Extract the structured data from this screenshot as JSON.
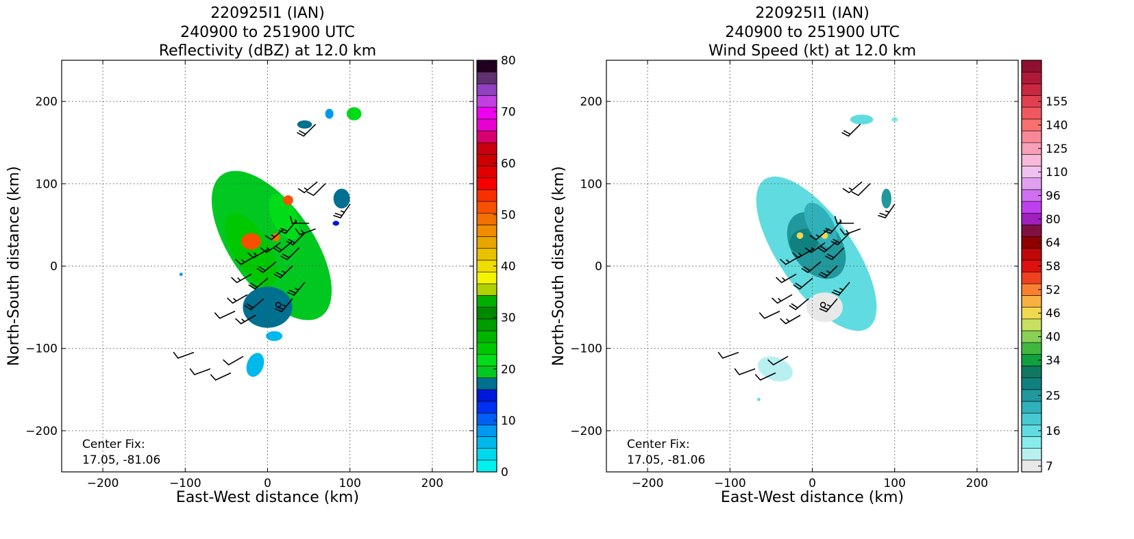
{
  "chart_data": [
    {
      "type": "heatmap",
      "title": [
        "220925I1 (IAN)",
        "240900 to 251900 UTC",
        "Reflectivity (dBZ) at 12.0 km"
      ],
      "xlabel": "East-West distance (km)",
      "ylabel": "North-South distance (km)",
      "xlim": [
        -250,
        250
      ],
      "ylim": [
        -250,
        250
      ],
      "xticks": [
        -200,
        -100,
        0,
        100,
        200
      ],
      "yticks": [
        -200,
        -100,
        0,
        100,
        200
      ],
      "grid": true,
      "annotation": [
        "Center Fix:",
        "17.05, -81.06"
      ],
      "colorbar": {
        "min": 0,
        "max": 80,
        "ticks": [
          0,
          10,
          20,
          30,
          40,
          50,
          60,
          70,
          80
        ],
        "colors": [
          "#00f0f0",
          "#00d8ec",
          "#00b8ec",
          "#0098f0",
          "#0060f4",
          "#0030f0",
          "#0018d8",
          "#007090",
          "#00c820",
          "#00dc18",
          "#00c800",
          "#00b400",
          "#009c00",
          "#008800",
          "#00b000",
          "#b0d000",
          "#f4f400",
          "#f0dc00",
          "#e8c000",
          "#e8a400",
          "#f08c00",
          "#f07000",
          "#f85000",
          "#f83000",
          "#f80000",
          "#e00000",
          "#cc0000",
          "#c80010",
          "#d80070",
          "#e800d0",
          "#f000f0",
          "#c040e0",
          "#9040c0",
          "#603070",
          "#200020"
        ]
      },
      "echo_regions": [
        {
          "cx": 5,
          "cy": 25,
          "rx": 50,
          "ry": 105,
          "angle": -35,
          "level": 8
        },
        {
          "cx": -20,
          "cy": 20,
          "rx": 22,
          "ry": 50,
          "angle": -30,
          "level": 10
        },
        {
          "cx": 20,
          "cy": 60,
          "rx": 15,
          "ry": 30,
          "angle": -25,
          "level": 9
        },
        {
          "cx": 0,
          "cy": -50,
          "rx": 30,
          "ry": 25,
          "angle": 0,
          "level": 7
        },
        {
          "cx": -20,
          "cy": 30,
          "rx": 12,
          "ry": 10,
          "angle": 0,
          "level": 22
        },
        {
          "cx": 25,
          "cy": 80,
          "rx": 6,
          "ry": 6,
          "angle": 0,
          "level": 22
        },
        {
          "cx": 10,
          "cy": 35,
          "rx": 5,
          "ry": 5,
          "angle": 0,
          "level": 21
        },
        {
          "cx": 105,
          "cy": 185,
          "rx": 9,
          "ry": 8,
          "angle": 0,
          "level": 9
        },
        {
          "cx": 75,
          "cy": 185,
          "rx": 5,
          "ry": 6,
          "angle": 0,
          "level": 3
        },
        {
          "cx": 45,
          "cy": 172,
          "rx": 9,
          "ry": 5,
          "angle": 0,
          "level": 7
        },
        {
          "cx": 90,
          "cy": 82,
          "rx": 10,
          "ry": 12,
          "angle": 0,
          "level": 7
        },
        {
          "cx": 83,
          "cy": 52,
          "rx": 4,
          "ry": 3,
          "angle": 0,
          "level": 6
        },
        {
          "cx": 8,
          "cy": -85,
          "rx": 10,
          "ry": 6,
          "angle": 0,
          "level": 2
        },
        {
          "cx": -15,
          "cy": -120,
          "rx": 10,
          "ry": 15,
          "angle": 20,
          "level": 2
        },
        {
          "cx": -105,
          "cy": -10,
          "rx": 2,
          "ry": 2,
          "angle": 0,
          "level": 3
        }
      ]
    },
    {
      "type": "heatmap",
      "title": [
        "220925I1 (IAN)",
        "240900 to 251900 UTC",
        "Wind Speed (kt) at 12.0 km"
      ],
      "xlabel": "East-West distance (km)",
      "ylabel": "North-South distance (km)",
      "xlim": [
        -250,
        250
      ],
      "ylim": [
        -250,
        250
      ],
      "xticks": [
        -200,
        -100,
        0,
        100,
        200
      ],
      "yticks": [
        -200,
        -100,
        0,
        100,
        200
      ],
      "grid": true,
      "annotation": [
        "Center Fix:",
        "17.05, -81.06"
      ],
      "colorbar": {
        "ticks": [
          {
            "label": "7",
            "index": 0
          },
          {
            "label": "16",
            "index": 3
          },
          {
            "label": "25",
            "index": 6
          },
          {
            "label": "34",
            "index": 9
          },
          {
            "label": "40",
            "index": 11
          },
          {
            "label": "46",
            "index": 13
          },
          {
            "label": "52",
            "index": 15
          },
          {
            "label": "58",
            "index": 17
          },
          {
            "label": "64",
            "index": 19
          },
          {
            "label": "80",
            "index": 21
          },
          {
            "label": "96",
            "index": 23
          },
          {
            "label": "110",
            "index": 25
          },
          {
            "label": "125",
            "index": 27
          },
          {
            "label": "140",
            "index": 29
          },
          {
            "label": "155",
            "index": 31
          }
        ],
        "colors": [
          "#e8e8e8",
          "#b8f0f0",
          "#88ecec",
          "#60dce0",
          "#48c8d0",
          "#30b0b8",
          "#20989c",
          "#108080",
          "#107860",
          "#10a040",
          "#40b840",
          "#88d058",
          "#c8e060",
          "#f0d850",
          "#f8b040",
          "#f88030",
          "#f04020",
          "#e01010",
          "#c00808",
          "#900000",
          "#801040",
          "#a020c0",
          "#c040f0",
          "#d070f0",
          "#e0a0f0",
          "#f0c0f0",
          "#f8b8d8",
          "#f8a0b8",
          "#f88898",
          "#f87070",
          "#f05860",
          "#e04050",
          "#c82840",
          "#b01838",
          "#901030"
        ]
      },
      "echo_regions": [
        {
          "cx": 5,
          "cy": 15,
          "rx": 45,
          "ry": 110,
          "angle": -35,
          "level": 3
        },
        {
          "cx": 5,
          "cy": 25,
          "rx": 30,
          "ry": 45,
          "angle": -35,
          "level": 6
        },
        {
          "cx": -10,
          "cy": 30,
          "rx": 18,
          "ry": 15,
          "angle": -20,
          "level": 7
        },
        {
          "cx": 10,
          "cy": 50,
          "rx": 15,
          "ry": 30,
          "angle": -30,
          "level": 5
        },
        {
          "cx": 15,
          "cy": -50,
          "rx": 22,
          "ry": 18,
          "angle": 0,
          "level": 0
        },
        {
          "cx": -15,
          "cy": 37,
          "rx": 4,
          "ry": 4,
          "angle": 0,
          "level": 13
        },
        {
          "cx": 15,
          "cy": 37,
          "rx": 4,
          "ry": 4,
          "angle": 0,
          "level": 13
        },
        {
          "cx": 90,
          "cy": 82,
          "rx": 6,
          "ry": 12,
          "angle": 0,
          "level": 6
        },
        {
          "cx": 60,
          "cy": 178,
          "rx": 14,
          "ry": 6,
          "angle": 0,
          "level": 3
        },
        {
          "cx": 100,
          "cy": 178,
          "rx": 4,
          "ry": 3,
          "angle": 0,
          "level": 2
        },
        {
          "cx": -45,
          "cy": -125,
          "rx": 22,
          "ry": 14,
          "angle": 20,
          "level": 1
        },
        {
          "cx": -65,
          "cy": -162,
          "rx": 2,
          "ry": 2,
          "angle": 0,
          "level": 3
        }
      ]
    }
  ],
  "wind_barbs": [
    {
      "x": 58,
      "y": 172,
      "dir": 225,
      "kt": 20
    },
    {
      "x": 60,
      "y": 102,
      "dir": 230,
      "kt": 15
    },
    {
      "x": 70,
      "y": 100,
      "dir": 225,
      "kt": 10
    },
    {
      "x": 100,
      "y": 75,
      "dir": 215,
      "kt": 25
    },
    {
      "x": 50,
      "y": 52,
      "dir": 270,
      "kt": 15
    },
    {
      "x": 58,
      "y": 45,
      "dir": 250,
      "kt": 15
    },
    {
      "x": 35,
      "y": 55,
      "dir": 220,
      "kt": 20
    },
    {
      "x": 20,
      "y": 45,
      "dir": 230,
      "kt": 15
    },
    {
      "x": 45,
      "y": 40,
      "dir": 225,
      "kt": 20
    },
    {
      "x": 30,
      "y": 30,
      "dir": 230,
      "kt": 20
    },
    {
      "x": 15,
      "y": 28,
      "dir": 235,
      "kt": 15
    },
    {
      "x": 0,
      "y": 20,
      "dir": 240,
      "kt": 15
    },
    {
      "x": 38,
      "y": 22,
      "dir": 225,
      "kt": 20
    },
    {
      "x": -15,
      "y": 12,
      "dir": 240,
      "kt": 15
    },
    {
      "x": 10,
      "y": 5,
      "dir": 230,
      "kt": 20
    },
    {
      "x": 30,
      "y": 0,
      "dir": 225,
      "kt": 25
    },
    {
      "x": -20,
      "y": -10,
      "dir": 240,
      "kt": 15
    },
    {
      "x": 0,
      "y": -15,
      "dir": 230,
      "kt": 20
    },
    {
      "x": 45,
      "y": -20,
      "dir": 220,
      "kt": 25
    },
    {
      "x": -25,
      "y": -35,
      "dir": 240,
      "kt": 15
    },
    {
      "x": -5,
      "y": -40,
      "dir": 230,
      "kt": 20
    },
    {
      "x": 30,
      "y": -40,
      "dir": 220,
      "kt": 25
    },
    {
      "x": -40,
      "y": -55,
      "dir": 245,
      "kt": 10
    },
    {
      "x": -15,
      "y": -60,
      "dir": 240,
      "kt": 15
    },
    {
      "x": -90,
      "y": -105,
      "dir": 250,
      "kt": 10
    },
    {
      "x": -70,
      "y": -125,
      "dir": 250,
      "kt": 10
    },
    {
      "x": -45,
      "y": -130,
      "dir": 245,
      "kt": 10
    },
    {
      "x": -30,
      "y": -110,
      "dir": 240,
      "kt": 10
    }
  ],
  "center_marker": {
    "x": 13,
    "y": -47
  }
}
